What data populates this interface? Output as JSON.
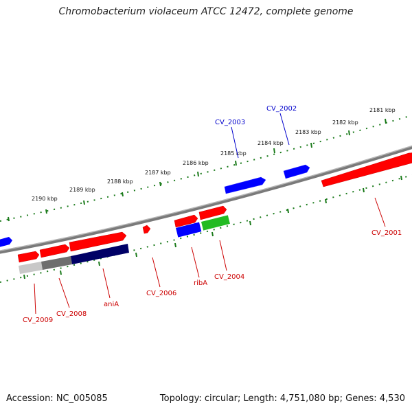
{
  "title": "Chromobacterium violaceum ATCC 12472, complete genome",
  "footer": {
    "accession": "Accession: NC_005085",
    "stats": "Topology: circular; Length: 4,751,080 bp; Genes: 4,530"
  },
  "colors": {
    "background": "#ffffff",
    "forward_gene": "#ff0000",
    "reverse_gene": "#0000ff",
    "rna_gene": "#22bb22",
    "operon_dark": "#000066",
    "operon_grey": "#777777",
    "backbone": "#888888",
    "ticks": "#1a7a1a",
    "forward_label": "#cc0000",
    "reverse_label": "#0000cc"
  },
  "scale": {
    "unit": "kbp",
    "tick_labels": [
      "2181 kbp",
      "2182 kbp",
      "2183 kbp",
      "2184 kbp",
      "2185 kbp",
      "2186 kbp",
      "2187 kbp",
      "2188 kbp",
      "2189 kbp",
      "2190 kbp"
    ]
  },
  "gene_labels": [
    {
      "name": "CV_2001",
      "strand": "forward"
    },
    {
      "name": "CV_2002",
      "strand": "reverse"
    },
    {
      "name": "CV_2003",
      "strand": "reverse"
    },
    {
      "name": "CV_2004",
      "strand": "forward"
    },
    {
      "name": "ribA",
      "strand": "forward"
    },
    {
      "name": "CV_2006",
      "strand": "forward"
    },
    {
      "name": "aniA",
      "strand": "forward"
    },
    {
      "name": "CV_2008",
      "strand": "forward"
    },
    {
      "name": "CV_2009",
      "strand": "forward"
    }
  ]
}
